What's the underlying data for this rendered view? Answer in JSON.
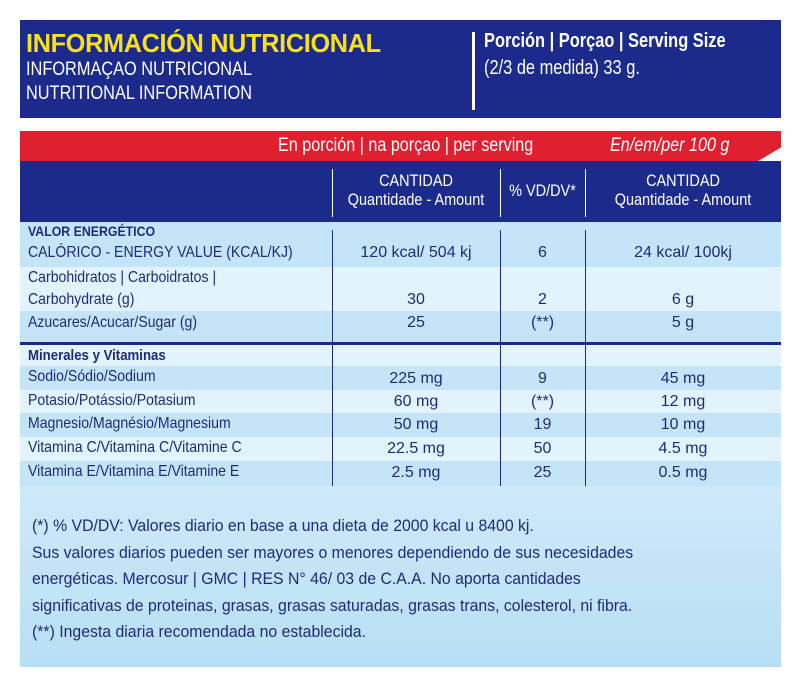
{
  "header": {
    "title_es": "INFORMACIÓN NUTRICIONAL",
    "title_pt": "INFORMAÇAO NUTRICIONAL",
    "title_en": "NUTRITIONAL INFORMATION",
    "serving_label": "Porción | Porçao | Serving Size",
    "serving_value": "(2/3 de medida) 33 g."
  },
  "bands": {
    "per_serving": "En porción | na porçao | per serving",
    "per_100": "En/em/per 100 g"
  },
  "columns": {
    "amount_title": "CANTIDAD",
    "amount_sub": "Quantidade - Amount",
    "dv": "% VD/DV*",
    "amount100_title": "CANTIDAD",
    "amount100_sub": "Quantidade - Amount"
  },
  "sections": {
    "energy": "VALOR ENERGÉTICO",
    "minerals": "Minerales y Vitaminas"
  },
  "rows": [
    {
      "label": "CALÓRICO - ENERGY VALUE (KCAL/KJ)",
      "amount": "120 kcal/ 504 kj",
      "dv": "6",
      "per100": "24 kcal/ 100kj"
    },
    {
      "label": "Carbohidratos | Carboidratos |",
      "label2": "Carbohydrate (g)",
      "amount": "30",
      "dv": "2",
      "per100": "6 g"
    },
    {
      "label": "Azucares/Acucar/Sugar (g)",
      "amount": "25",
      "dv": "(**)",
      "per100": "5 g"
    },
    {
      "label": "Sodio/Sódio/Sodium",
      "amount": "225 mg",
      "dv": "9",
      "per100": "45 mg"
    },
    {
      "label": "Potasio/Potássio/Potasium",
      "amount": "60 mg",
      "dv": "(**)",
      "per100": "12 mg"
    },
    {
      "label": "Magnesio/Magnésio/Magnesium",
      "amount": "50 mg",
      "dv": "19",
      "per100": "10 mg"
    },
    {
      "label": "Vitamina C/Vitamina C/Vitamine C",
      "amount": "22.5 mg",
      "dv": "50",
      "per100": "4.5 mg"
    },
    {
      "label": "Vitamina E/Vitamina E/Vitamine E",
      "amount": "2.5 mg",
      "dv": "25",
      "per100": "0.5 mg"
    }
  ],
  "footer": [
    "(*) % VD/DV: Valores diario en base a una dieta de 2000 kcal u 8400 kj.",
    "Sus valores diarios pueden ser mayores o menores dependiendo de sus necesidades",
    "energéticas. Mercosur | GMC | RES N° 46/ 03 de C.A.A. No aporta cantidades",
    "significativas de proteinas, grasas, grasas saturadas, grasas trans, colesterol, ni fibra.",
    "(**) Ingesta diaria recomendada no establecida."
  ]
}
